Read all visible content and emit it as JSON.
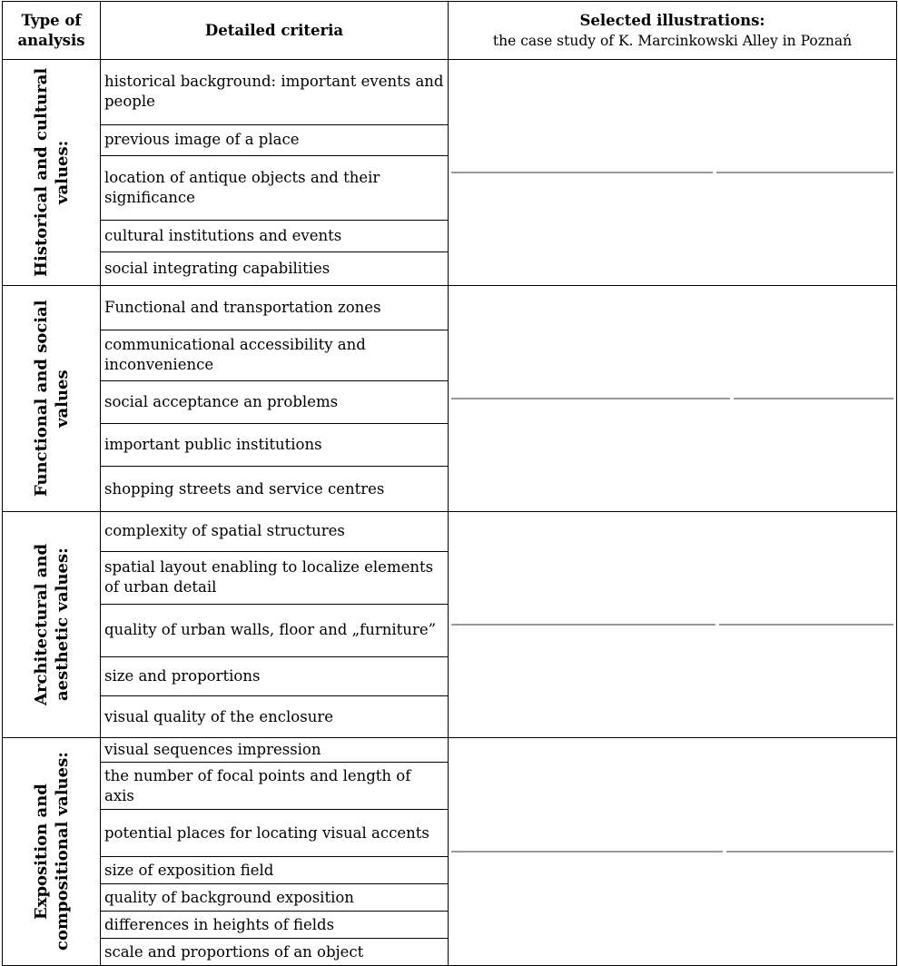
{
  "header": {
    "type_of_analysis": "Type of analysis",
    "detailed_criteria": "Detailed criteria",
    "illustrations_title": "Selected illustrations:",
    "illustrations_subtitle": "the case study of K. Marcinkowski Alley in Poznań"
  },
  "groups": [
    {
      "label": "Historical and cultural values:",
      "criteria": [
        "historical background: important events and people",
        "previous image of a place",
        "location of antique objects and their significance",
        "cultural institutions and events",
        "social integrating capabilities"
      ]
    },
    {
      "label": "Functional and social values",
      "criteria": [
        "Functional and transportation zones",
        "communicational accessibility and inconvenience",
        "social acceptance an problems",
        "important public institutions",
        "shopping streets and service centres"
      ]
    },
    {
      "label": "Architectural and aesthetic values:",
      "criteria": [
        "complexity of spatial structures",
        "spatial layout enabling to localize elements of urban detail",
        "quality of urban walls, floor and „furniture”",
        "size and proportions",
        "visual quality of the enclosure"
      ]
    },
    {
      "label": "Exposition and compositional values:",
      "criteria": [
        "visual sequences impression",
        "the number of focal points and length of axis",
        "potential places for locating visual accents",
        "size of exposition field",
        "quality of background exposition",
        "differences in heights of fields",
        "scale and proportions of an object"
      ]
    }
  ]
}
